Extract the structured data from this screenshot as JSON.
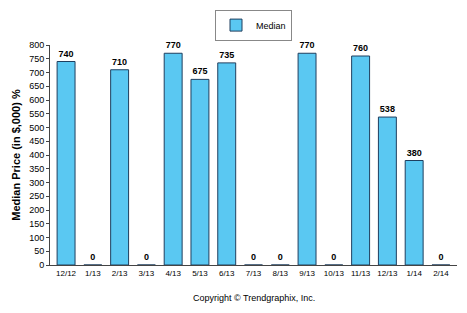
{
  "chart_data": {
    "type": "bar",
    "y_label": "Median Price (in $,000) %",
    "categories": [
      "12/12",
      "1/13",
      "2/13",
      "3/13",
      "4/13",
      "5/13",
      "6/13",
      "7/13",
      "8/13",
      "9/13",
      "10/13",
      "11/13",
      "12/13",
      "1/14",
      "2/14"
    ],
    "series": [
      {
        "name": "Median",
        "color": "#5ac8f2",
        "values": [
          740,
          0,
          710,
          0,
          770,
          675,
          735,
          0,
          0,
          770,
          0,
          760,
          538,
          380,
          0
        ]
      }
    ],
    "ylim": [
      0,
      800
    ],
    "yticks": [
      0,
      50,
      100,
      150,
      200,
      250,
      300,
      350,
      400,
      450,
      500,
      550,
      600,
      650,
      700,
      750,
      800
    ],
    "grid": false,
    "legend": "top",
    "data_labels": true,
    "annotations": [
      "Copyright © Trendgraphix, Inc."
    ]
  }
}
